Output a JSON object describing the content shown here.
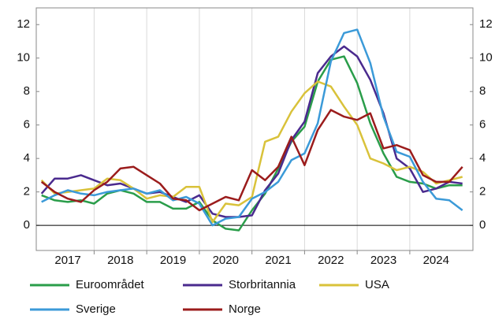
{
  "chart_data": {
    "type": "line",
    "x": [
      2017.0,
      2017.25,
      2017.5,
      2017.75,
      2018.0,
      2018.25,
      2018.5,
      2018.75,
      2019.0,
      2019.25,
      2019.5,
      2019.75,
      2020.0,
      2020.25,
      2020.5,
      2020.75,
      2021.0,
      2021.25,
      2021.5,
      2021.75,
      2022.0,
      2022.25,
      2022.5,
      2022.75,
      2023.0,
      2023.25,
      2023.5,
      2023.75,
      2024.0,
      2024.25,
      2024.5,
      2024.75,
      2025.0
    ],
    "series": [
      {
        "name": "Euroområdet",
        "color": "#2a9d4a",
        "values": [
          1.8,
          1.5,
          1.4,
          1.5,
          1.3,
          1.9,
          2.1,
          1.9,
          1.4,
          1.4,
          1.0,
          1.0,
          1.4,
          0.3,
          -0.2,
          -0.3,
          0.9,
          1.9,
          3.4,
          5.0,
          5.9,
          8.6,
          9.9,
          10.1,
          8.5,
          6.1,
          4.3,
          2.9,
          2.6,
          2.5,
          2.2,
          2.4,
          2.4
        ]
      },
      {
        "name": "Storbritannia",
        "color": "#4a2a8e",
        "values": [
          1.9,
          2.8,
          2.8,
          3.0,
          2.7,
          2.4,
          2.5,
          2.2,
          1.9,
          2.0,
          1.7,
          1.4,
          1.8,
          0.7,
          0.5,
          0.5,
          0.6,
          2.1,
          3.1,
          5.1,
          6.2,
          9.1,
          10.1,
          10.7,
          10.1,
          8.7,
          6.7,
          4.0,
          3.4,
          2.0,
          2.2,
          2.6,
          2.5
        ]
      },
      {
        "name": "USA",
        "color": "#d9c23a",
        "values": [
          2.7,
          1.9,
          2.0,
          2.1,
          2.2,
          2.8,
          2.7,
          2.2,
          1.6,
          1.8,
          1.7,
          2.3,
          2.3,
          0.2,
          1.3,
          1.2,
          1.7,
          5.0,
          5.3,
          6.8,
          7.9,
          8.6,
          8.3,
          7.1,
          6.0,
          4.0,
          3.7,
          3.3,
          3.5,
          3.2,
          2.5,
          2.7,
          2.9
        ]
      },
      {
        "name": "Sverige",
        "color": "#3b9ad8",
        "values": [
          1.4,
          1.8,
          2.1,
          1.9,
          1.8,
          2.0,
          2.1,
          2.2,
          1.9,
          2.1,
          1.5,
          1.7,
          1.3,
          0.0,
          0.4,
          0.5,
          1.6,
          2.0,
          2.6,
          3.9,
          4.3,
          6.1,
          9.8,
          11.5,
          11.7,
          9.7,
          6.5,
          4.4,
          4.1,
          2.6,
          1.6,
          1.5,
          0.9
        ]
      },
      {
        "name": "Norge",
        "color": "#9b1c1c",
        "values": [
          2.6,
          2.0,
          1.6,
          1.4,
          2.1,
          2.6,
          3.4,
          3.5,
          3.0,
          2.5,
          1.6,
          1.5,
          0.9,
          1.3,
          1.7,
          1.5,
          3.3,
          2.7,
          3.5,
          5.3,
          3.6,
          5.7,
          6.9,
          6.5,
          6.3,
          6.7,
          4.6,
          4.8,
          4.5,
          3.0,
          2.6,
          2.6,
          3.5
        ]
      }
    ],
    "xlim": [
      2016.9,
      2025.2
    ],
    "xticks": [
      {
        "value": 2017.5,
        "label": "2017"
      },
      {
        "value": 2018.5,
        "label": "2018"
      },
      {
        "value": 2019.5,
        "label": "2019"
      },
      {
        "value": 2020.5,
        "label": "2020"
      },
      {
        "value": 2021.5,
        "label": "2021"
      },
      {
        "value": 2022.5,
        "label": "2022"
      },
      {
        "value": 2023.5,
        "label": "2023"
      },
      {
        "value": 2024.5,
        "label": "2024"
      }
    ],
    "ylim": [
      -1.5,
      13
    ],
    "yticks": [
      0,
      2,
      4,
      6,
      8,
      10,
      12
    ],
    "y2lim": [
      -1.5,
      13
    ],
    "y2ticks": [
      0,
      2,
      4,
      6,
      8,
      10,
      12
    ],
    "grid": true
  }
}
